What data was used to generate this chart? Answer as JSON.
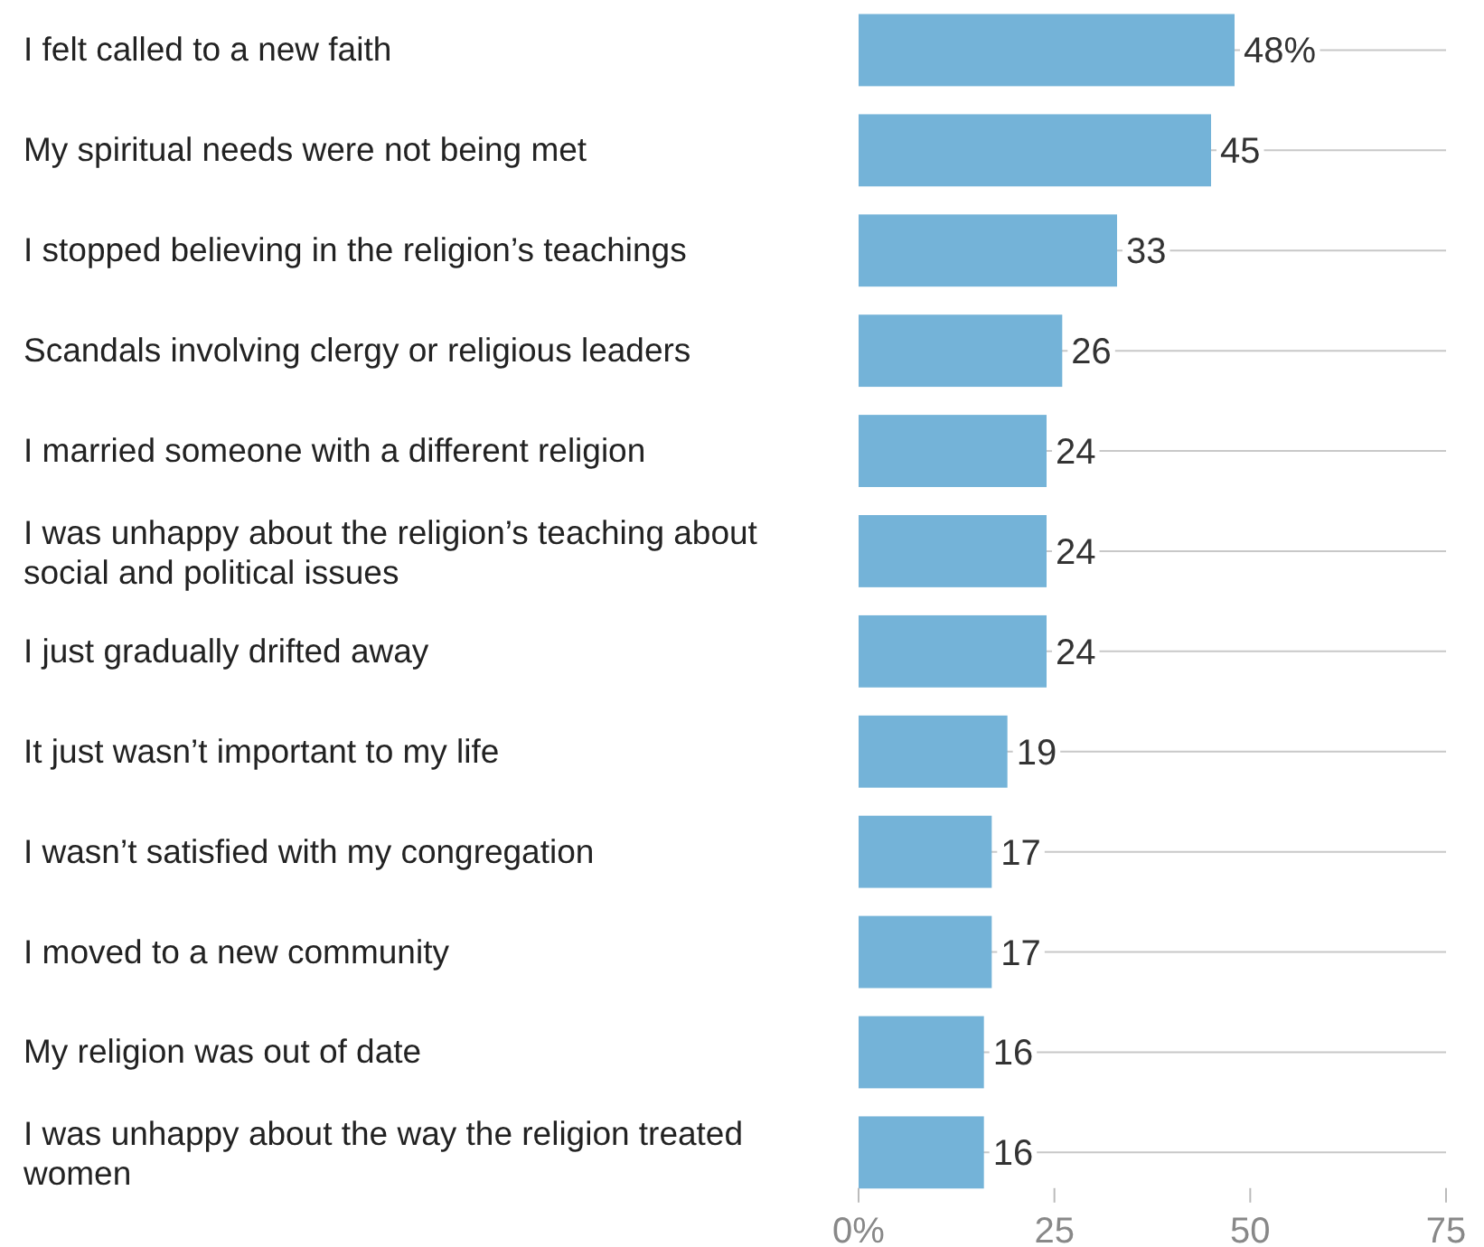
{
  "chart_data": {
    "type": "bar",
    "orientation": "horizontal",
    "categories": [
      "I felt called to a new faith",
      "My spiritual needs were not being met",
      "I stopped believing in the religion’s teachings",
      "Scandals involving clergy or religious leaders",
      "I married someone with a different religion",
      "I was unhappy about the religion’s teaching about social and political issues",
      "I just gradually drifted away",
      "It just wasn’t important to my life",
      "I wasn’t satisfied with my congregation",
      "I moved to a new community",
      "My religion was out of date",
      "I was unhappy about the way the religion treated women"
    ],
    "values": [
      48,
      45,
      33,
      26,
      24,
      24,
      24,
      19,
      17,
      17,
      16,
      16
    ],
    "value_labels": [
      "48%",
      "45",
      "33",
      "26",
      "24",
      "24",
      "24",
      "19",
      "17",
      "17",
      "16",
      "16"
    ],
    "color": "#74b3d8",
    "xlim": [
      0,
      75
    ],
    "xticks": [
      {
        "value": 0,
        "label": "0%"
      },
      25,
      50,
      75
    ],
    "grid": "y"
  }
}
